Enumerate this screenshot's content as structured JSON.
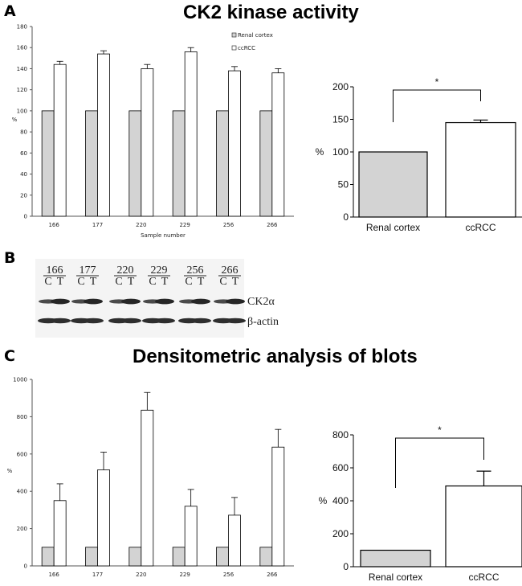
{
  "panels": {
    "a": {
      "letter": "A",
      "title": "CK2 kinase activity"
    },
    "b": {
      "letter": "B"
    },
    "c": {
      "letter": "C",
      "title": "Densitometric analysis of blots"
    }
  },
  "blot": {
    "samples": [
      "166",
      "177",
      "220",
      "229",
      "256",
      "266"
    ],
    "lane_labels": [
      "C",
      "T"
    ],
    "band_labels": [
      "CK2α",
      "β-actin"
    ]
  },
  "colors": {
    "renal_cortex": "#d3d3d3",
    "ccrcc": "#ffffff",
    "axis": "#555555"
  },
  "chart_data": [
    {
      "id": "a-left",
      "type": "bar",
      "title": "",
      "categories": [
        "166",
        "177",
        "220",
        "229",
        "256",
        "266"
      ],
      "series": [
        {
          "name": "Renal cortex",
          "values": [
            100,
            100,
            100,
            100,
            100,
            100
          ],
          "errors": [
            0,
            0,
            0,
            0,
            0,
            0
          ]
        },
        {
          "name": "ccRCC",
          "values": [
            144,
            154,
            140,
            156,
            138,
            136
          ],
          "errors": [
            3,
            3,
            4,
            4,
            4,
            4
          ]
        }
      ],
      "xlabel": "Sample number",
      "ylabel": "%",
      "ylim": [
        0,
        180
      ],
      "yticks": [
        0,
        20,
        40,
        60,
        80,
        100,
        120,
        140,
        160,
        180
      ],
      "legend": [
        "Renal cortex",
        "ccRCC"
      ],
      "legend_position": "top-right",
      "grid": false
    },
    {
      "id": "a-right",
      "type": "bar",
      "title": "",
      "categories": [
        "Renal cortex",
        "ccRCC"
      ],
      "values": [
        100,
        145
      ],
      "errors": [
        0,
        4
      ],
      "xlabel": "",
      "ylabel": "%",
      "ylim": [
        0,
        200
      ],
      "yticks": [
        0,
        50,
        100,
        150,
        200
      ],
      "significance": {
        "between": [
          "Renal cortex",
          "ccRCC"
        ],
        "label": "*"
      }
    },
    {
      "id": "c-left",
      "type": "bar",
      "title": "",
      "categories": [
        "166",
        "177",
        "220",
        "229",
        "256",
        "266"
      ],
      "series": [
        {
          "name": "Renal cortex",
          "values": [
            100,
            100,
            100,
            100,
            100,
            100
          ],
          "errors": [
            0,
            0,
            0,
            0,
            0,
            0
          ]
        },
        {
          "name": "ccRCC",
          "values": [
            350,
            515,
            835,
            320,
            272,
            637
          ],
          "errors": [
            90,
            95,
            95,
            90,
            95,
            95
          ]
        }
      ],
      "xlabel": "",
      "ylabel": "%",
      "ylim": [
        0,
        1000
      ],
      "yticks": [
        0,
        200,
        400,
        600,
        800,
        1000
      ],
      "grid": false
    },
    {
      "id": "c-right",
      "type": "bar",
      "title": "",
      "categories": [
        "Renal cortex",
        "ccRCC"
      ],
      "values": [
        100,
        490
      ],
      "errors": [
        0,
        90
      ],
      "xlabel": "",
      "ylabel": "%",
      "ylim": [
        0,
        800
      ],
      "yticks": [
        0,
        200,
        400,
        600,
        800
      ],
      "significance": {
        "between": [
          "Renal cortex",
          "ccRCC"
        ],
        "label": "*"
      }
    }
  ]
}
